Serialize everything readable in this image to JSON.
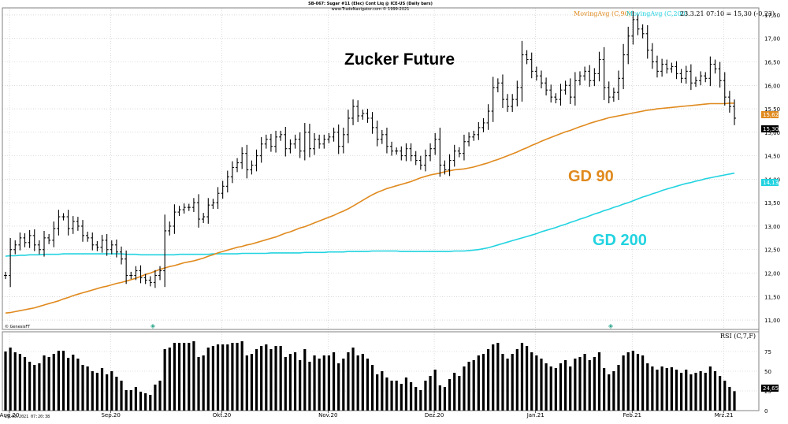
{
  "header": {
    "line1": "SB-067:  Sugar #11 (Elec) Cont Liq @ ICE-US  (Daily bars)",
    "line2": "www.TradeNavigator.com © 1999-2021"
  },
  "legend": {
    "ma90_label": "MovingAvg (C,90)",
    "ma200_label": "MovingAvg (C,200)",
    "last_info": "23.3.21 07:10 = 15,30 (-0,23)"
  },
  "annotations": {
    "title": "Zucker Future",
    "gd90": "GD 90",
    "gd200": "GD 200"
  },
  "footer": {
    "copyright": "© GenesisFT",
    "timestamp": "23.03.2021 07:20:38"
  },
  "colors": {
    "bars": "#000000",
    "ma90": "#e08a1e",
    "ma200": "#22d3e0",
    "grid": "#c4c4c4",
    "rsi_bars": "#000000"
  },
  "chart_data": [
    {
      "type": "ohlc",
      "title": "Zucker Future",
      "y_ticks": [
        "11,00",
        "11,50",
        "12,00",
        "12,50",
        "13,00",
        "13,50",
        "14,00",
        "14,50",
        "15,00",
        "15,50",
        "16,00",
        "16,50",
        "17,00",
        "17,50"
      ],
      "ylim": [
        10.8,
        17.65
      ],
      "x_labels": [
        "Aug.20",
        "Sep.20",
        "Okt.20",
        "Nov.20",
        "Dez.20",
        "Jan.21",
        "Feb.21",
        "Mrz.21"
      ],
      "grid": true,
      "price_label": "15,30",
      "ma90_label": "15,62",
      "ma200_label": "14,13",
      "close": [
        11.95,
        12.5,
        12.6,
        12.75,
        12.65,
        12.8,
        12.6,
        12.5,
        12.75,
        12.7,
        12.95,
        13.2,
        13.2,
        12.95,
        13.1,
        13.0,
        12.8,
        12.75,
        12.6,
        12.55,
        12.7,
        12.5,
        12.6,
        12.45,
        12.3,
        11.95,
        11.95,
        12.05,
        11.9,
        11.85,
        11.8,
        11.95,
        12.05,
        12.9,
        13.0,
        13.3,
        13.35,
        13.4,
        13.4,
        13.5,
        13.15,
        13.2,
        13.45,
        13.5,
        13.7,
        13.85,
        14.05,
        14.25,
        14.35,
        14.55,
        14.2,
        14.3,
        14.5,
        14.75,
        14.85,
        14.7,
        14.9,
        14.95,
        14.65,
        14.75,
        14.85,
        14.6,
        15.0,
        14.65,
        14.85,
        14.75,
        14.85,
        14.9,
        15.0,
        14.7,
        14.95,
        15.3,
        15.55,
        15.35,
        15.4,
        15.3,
        15.1,
        14.85,
        14.95,
        14.7,
        14.6,
        14.6,
        14.5,
        14.65,
        14.5,
        14.4,
        14.3,
        14.5,
        14.65,
        14.85,
        14.3,
        14.2,
        14.4,
        14.6,
        14.55,
        14.8,
        14.9,
        14.95,
        15.1,
        15.2,
        15.45,
        15.95,
        16.05,
        15.7,
        15.55,
        15.7,
        15.95,
        16.65,
        16.55,
        16.3,
        16.2,
        16.05,
        15.9,
        15.75,
        15.7,
        15.9,
        16.0,
        15.75,
        16.1,
        16.2,
        16.3,
        16.1,
        16.25,
        16.55,
        15.95,
        15.75,
        15.85,
        16.15,
        16.65,
        17.05,
        17.4,
        17.2,
        17.1,
        16.75,
        16.5,
        16.3,
        16.45,
        16.35,
        16.4,
        16.25,
        16.15,
        16.3,
        16.05,
        16.1,
        16.2,
        16.15,
        16.45,
        16.35,
        16.1,
        15.75,
        15.55,
        15.3
      ],
      "ma90": [
        11.15,
        11.16,
        11.18,
        11.2,
        11.22,
        11.24,
        11.26,
        11.29,
        11.32,
        11.35,
        11.38,
        11.41,
        11.45,
        11.48,
        11.52,
        11.55,
        11.58,
        11.61,
        11.64,
        11.67,
        11.7,
        11.72,
        11.75,
        11.78,
        11.8,
        11.83,
        11.86,
        11.89,
        11.93,
        11.97,
        12.0,
        12.04,
        12.08,
        12.11,
        12.14,
        12.16,
        12.19,
        12.22,
        12.24,
        12.26,
        12.29,
        12.32,
        12.36,
        12.39,
        12.43,
        12.46,
        12.49,
        12.52,
        12.55,
        12.57,
        12.6,
        12.62,
        12.65,
        12.68,
        12.71,
        12.74,
        12.77,
        12.81,
        12.85,
        12.88,
        12.92,
        12.96,
        12.99,
        13.03,
        13.07,
        13.11,
        13.15,
        13.19,
        13.23,
        13.28,
        13.32,
        13.37,
        13.43,
        13.49,
        13.55,
        13.61,
        13.67,
        13.72,
        13.76,
        13.8,
        13.83,
        13.86,
        13.89,
        13.92,
        13.95,
        13.99,
        14.03,
        14.06,
        14.09,
        14.11,
        14.13,
        14.16,
        14.18,
        14.2,
        14.21,
        14.22,
        14.24,
        14.26,
        14.29,
        14.32,
        14.35,
        14.39,
        14.42,
        14.46,
        14.5,
        14.54,
        14.58,
        14.63,
        14.67,
        14.72,
        14.76,
        14.81,
        14.85,
        14.89,
        14.93,
        14.97,
        15.01,
        15.04,
        15.08,
        15.12,
        15.15,
        15.19,
        15.22,
        15.25,
        15.28,
        15.31,
        15.33,
        15.35,
        15.37,
        15.39,
        15.41,
        15.43,
        15.45,
        15.47,
        15.48,
        15.5,
        15.51,
        15.52,
        15.53,
        15.54,
        15.55,
        15.56,
        15.57,
        15.58,
        15.59,
        15.6,
        15.61,
        15.61,
        15.61,
        15.61,
        15.62,
        15.62
      ],
      "ma200": [
        12.36,
        12.37,
        12.37,
        12.38,
        12.38,
        12.39,
        12.39,
        12.39,
        12.4,
        12.4,
        12.4,
        12.4,
        12.41,
        12.41,
        12.41,
        12.41,
        12.41,
        12.41,
        12.41,
        12.41,
        12.41,
        12.41,
        12.41,
        12.41,
        12.41,
        12.4,
        12.4,
        12.4,
        12.39,
        12.39,
        12.39,
        12.39,
        12.39,
        12.39,
        12.39,
        12.39,
        12.4,
        12.4,
        12.4,
        12.4,
        12.4,
        12.4,
        12.4,
        12.41,
        12.41,
        12.41,
        12.41,
        12.41,
        12.41,
        12.42,
        12.42,
        12.42,
        12.42,
        12.42,
        12.42,
        12.43,
        12.43,
        12.43,
        12.43,
        12.43,
        12.43,
        12.43,
        12.44,
        12.44,
        12.44,
        12.44,
        12.44,
        12.45,
        12.45,
        12.45,
        12.45,
        12.46,
        12.46,
        12.46,
        12.46,
        12.46,
        12.47,
        12.47,
        12.47,
        12.47,
        12.47,
        12.47,
        12.46,
        12.46,
        12.46,
        12.46,
        12.46,
        12.46,
        12.46,
        12.46,
        12.46,
        12.46,
        12.46,
        12.47,
        12.47,
        12.47,
        12.48,
        12.49,
        12.5,
        12.52,
        12.54,
        12.57,
        12.6,
        12.63,
        12.66,
        12.69,
        12.72,
        12.75,
        12.78,
        12.81,
        12.84,
        12.88,
        12.91,
        12.94,
        12.97,
        13.01,
        13.04,
        13.08,
        13.11,
        13.15,
        13.18,
        13.22,
        13.26,
        13.29,
        13.33,
        13.36,
        13.4,
        13.43,
        13.47,
        13.5,
        13.54,
        13.58,
        13.62,
        13.65,
        13.69,
        13.72,
        13.76,
        13.79,
        13.82,
        13.85,
        13.88,
        13.91,
        13.93,
        13.96,
        13.98,
        14.01,
        14.03,
        14.05,
        14.07,
        14.09,
        14.11,
        14.13
      ]
    },
    {
      "type": "bar",
      "title": "RSI (C,7,F)",
      "y_ticks": [
        "0",
        "25",
        "50",
        "75"
      ],
      "ylim": [
        0,
        100
      ],
      "last_label": "24,65",
      "values": [
        75,
        80,
        74,
        72,
        68,
        62,
        58,
        60,
        70,
        68,
        72,
        76,
        76,
        67,
        71,
        66,
        58,
        56,
        50,
        48,
        54,
        46,
        50,
        43,
        38,
        26,
        26,
        30,
        24,
        22,
        20,
        33,
        38,
        78,
        80,
        86,
        86,
        86,
        86,
        88,
        68,
        70,
        80,
        82,
        84,
        84,
        84,
        86,
        86,
        88,
        70,
        72,
        78,
        82,
        84,
        78,
        82,
        82,
        68,
        72,
        74,
        64,
        78,
        62,
        70,
        66,
        70,
        70,
        74,
        60,
        66,
        74,
        80,
        70,
        72,
        66,
        58,
        46,
        50,
        42,
        38,
        38,
        34,
        42,
        36,
        30,
        26,
        38,
        44,
        52,
        32,
        30,
        40,
        48,
        44,
        56,
        62,
        64,
        70,
        72,
        78,
        84,
        86,
        72,
        66,
        72,
        78,
        86,
        82,
        74,
        70,
        66,
        60,
        56,
        54,
        60,
        64,
        56,
        66,
        68,
        72,
        64,
        68,
        74,
        54,
        46,
        50,
        58,
        70,
        74,
        76,
        72,
        70,
        60,
        56,
        52,
        56,
        54,
        55,
        52,
        48,
        52,
        46,
        48,
        50,
        48,
        56,
        50,
        44,
        38,
        30,
        24.65
      ]
    }
  ]
}
